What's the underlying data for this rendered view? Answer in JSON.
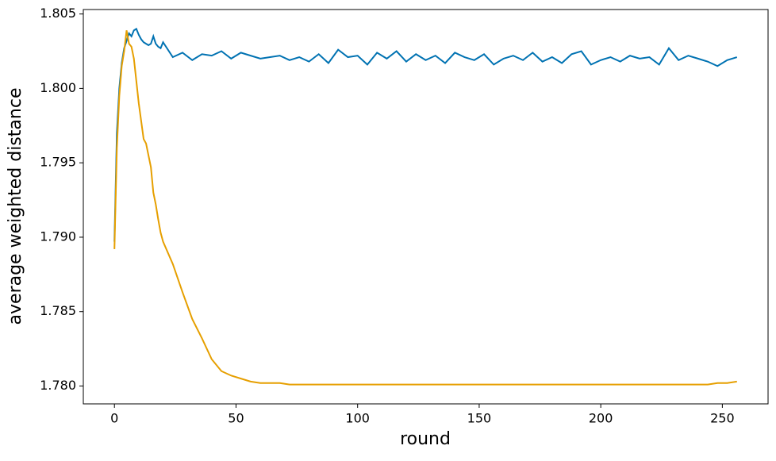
{
  "chart_data": {
    "type": "line",
    "xlabel": "round",
    "ylabel": "average weighted distance",
    "x": [
      0,
      1,
      2,
      3,
      4,
      5,
      6,
      7,
      8,
      9,
      10,
      11,
      12,
      13,
      14,
      15,
      16,
      17,
      18,
      19,
      20,
      24,
      28,
      32,
      36,
      40,
      44,
      48,
      52,
      56,
      60,
      64,
      68,
      72,
      76,
      80,
      84,
      88,
      92,
      96,
      100,
      104,
      108,
      112,
      116,
      120,
      124,
      128,
      132,
      136,
      140,
      144,
      148,
      152,
      156,
      160,
      164,
      168,
      172,
      176,
      180,
      184,
      188,
      192,
      196,
      200,
      204,
      208,
      212,
      216,
      220,
      224,
      228,
      232,
      236,
      240,
      244,
      248,
      252,
      256
    ],
    "series": [
      {
        "color": "#0072b2",
        "values": [
          1.7897,
          1.797,
          1.8,
          1.8017,
          1.8027,
          1.8032,
          1.8037,
          1.8035,
          1.8039,
          1.804,
          1.8036,
          1.8033,
          1.8031,
          1.803,
          1.8029,
          1.803,
          1.8035,
          1.803,
          1.8028,
          1.8027,
          1.8031,
          1.8021,
          1.8024,
          1.8019,
          1.8023,
          1.8022,
          1.8025,
          1.802,
          1.8024,
          1.8022,
          1.802,
          1.8021,
          1.8022,
          1.8019,
          1.8021,
          1.8018,
          1.8023,
          1.8017,
          1.8026,
          1.8021,
          1.8022,
          1.8016,
          1.8024,
          1.802,
          1.8025,
          1.8018,
          1.8023,
          1.8019,
          1.8022,
          1.8017,
          1.8024,
          1.8021,
          1.8019,
          1.8023,
          1.8016,
          1.802,
          1.8022,
          1.8019,
          1.8024,
          1.8018,
          1.8021,
          1.8017,
          1.8023,
          1.8025,
          1.8016,
          1.8019,
          1.8021,
          1.8018,
          1.8022,
          1.802,
          1.8021,
          1.8016,
          1.8027,
          1.8019,
          1.8022,
          1.802,
          1.8018,
          1.8015,
          1.8019,
          1.8021
        ]
      },
      {
        "color": "#e69f00",
        "values": [
          1.7892,
          1.796,
          1.7995,
          1.8015,
          1.8025,
          1.8039,
          1.803,
          1.8028,
          1.802,
          1.8005,
          1.799,
          1.7978,
          1.7966,
          1.7963,
          1.7955,
          1.7947,
          1.793,
          1.7922,
          1.7912,
          1.7903,
          1.7897,
          1.7882,
          1.7863,
          1.7845,
          1.7832,
          1.7818,
          1.781,
          1.7807,
          1.7805,
          1.7803,
          1.7802,
          1.7802,
          1.7802,
          1.7801,
          1.7801,
          1.7801,
          1.7801,
          1.7801,
          1.7801,
          1.7801,
          1.7801,
          1.7801,
          1.7801,
          1.7801,
          1.7801,
          1.7801,
          1.7801,
          1.7801,
          1.7801,
          1.7801,
          1.7801,
          1.7801,
          1.7801,
          1.7801,
          1.7801,
          1.7801,
          1.7801,
          1.7801,
          1.7801,
          1.7801,
          1.7801,
          1.7801,
          1.7801,
          1.7801,
          1.7801,
          1.7801,
          1.7801,
          1.7801,
          1.7801,
          1.7801,
          1.7801,
          1.7801,
          1.7801,
          1.7801,
          1.7801,
          1.7801,
          1.7801,
          1.7802,
          1.7802,
          1.7803
        ]
      }
    ],
    "xlim": [
      -12.8,
      268.8
    ],
    "ylim": [
      1.7788,
      1.8053
    ],
    "xticks": [
      0,
      50,
      100,
      150,
      200,
      250
    ],
    "yticks": [
      {
        "value": 1.78,
        "label": "1.780"
      },
      {
        "value": 1.785,
        "label": "1.785"
      },
      {
        "value": 1.79,
        "label": "1.790"
      },
      {
        "value": 1.795,
        "label": "1.795"
      },
      {
        "value": 1.8,
        "label": "1.800"
      },
      {
        "value": 1.805,
        "label": "1.805"
      }
    ]
  }
}
